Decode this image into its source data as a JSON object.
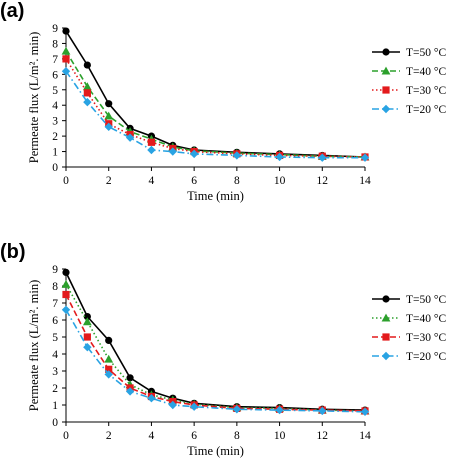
{
  "chart_data": [
    {
      "panel_label": "(a)",
      "type": "line",
      "xlabel": "Time (min)",
      "ylabel": "Permeate flux (L/m². min)",
      "xlim": [
        0,
        14
      ],
      "ylim": [
        0,
        9
      ],
      "xticks": [
        0,
        2,
        4,
        6,
        8,
        10,
        12,
        14
      ],
      "yticks": [
        0,
        1,
        2,
        3,
        4,
        5,
        6,
        7,
        8,
        9
      ],
      "grid": false,
      "legend_position": "right",
      "series": [
        {
          "name": "T=50 °C",
          "color": "#000000",
          "line_style": "solid",
          "marker": "circle",
          "x": [
            0,
            1,
            2,
            3,
            4,
            5,
            6,
            8,
            10,
            12,
            14
          ],
          "y": [
            8.8,
            6.6,
            4.1,
            2.5,
            2.0,
            1.4,
            1.1,
            0.95,
            0.85,
            0.75,
            0.65
          ]
        },
        {
          "name": "T=40 °C",
          "color": "#2ca02c",
          "line_style": "dashed",
          "marker": "triangle",
          "x": [
            0,
            1,
            2,
            3,
            4,
            5,
            6,
            8,
            10,
            12,
            14
          ],
          "y": [
            7.5,
            5.2,
            3.3,
            2.3,
            1.8,
            1.3,
            1.05,
            0.9,
            0.8,
            0.7,
            0.65
          ]
        },
        {
          "name": "T=30 °C",
          "color": "#e31a1c",
          "line_style": "dotted",
          "marker": "square",
          "x": [
            0,
            1,
            2,
            3,
            4,
            5,
            6,
            8,
            10,
            12,
            14
          ],
          "y": [
            7.0,
            4.8,
            2.8,
            2.1,
            1.6,
            1.2,
            1.0,
            0.85,
            0.75,
            0.7,
            0.65
          ]
        },
        {
          "name": "T=20 °C",
          "color": "#29a3e3",
          "line_style": "dashdot",
          "marker": "diamond",
          "x": [
            0,
            1,
            2,
            3,
            4,
            5,
            6,
            8,
            10,
            12,
            14
          ],
          "y": [
            6.2,
            4.2,
            2.6,
            1.9,
            1.1,
            1.0,
            0.85,
            0.75,
            0.65,
            0.6,
            0.6
          ]
        }
      ]
    },
    {
      "panel_label": "(b)",
      "type": "line",
      "xlabel": "Time (min)",
      "ylabel": "Permeate flux (L/m². min)",
      "xlim": [
        0,
        14
      ],
      "ylim": [
        0,
        9
      ],
      "xticks": [
        0,
        2,
        4,
        6,
        8,
        10,
        12,
        14
      ],
      "yticks": [
        0,
        1,
        2,
        3,
        4,
        5,
        6,
        7,
        8,
        9
      ],
      "grid": false,
      "legend_position": "right",
      "series": [
        {
          "name": "T=50 °C",
          "color": "#000000",
          "line_style": "solid",
          "marker": "circle",
          "x": [
            0,
            1,
            2,
            3,
            4,
            5,
            6,
            8,
            10,
            12,
            14
          ],
          "y": [
            8.8,
            6.2,
            4.8,
            2.6,
            1.8,
            1.4,
            1.1,
            0.9,
            0.85,
            0.75,
            0.7
          ]
        },
        {
          "name": "T=40 °C",
          "color": "#2ca02c",
          "line_style": "dotted",
          "marker": "triangle",
          "x": [
            0,
            1,
            2,
            3,
            4,
            5,
            6,
            8,
            10,
            12,
            14
          ],
          "y": [
            8.1,
            5.9,
            3.7,
            2.2,
            1.6,
            1.3,
            1.05,
            0.85,
            0.8,
            0.7,
            0.65
          ]
        },
        {
          "name": "T=30 °C",
          "color": "#e31a1c",
          "line_style": "dashed",
          "marker": "square",
          "x": [
            0,
            1,
            2,
            3,
            4,
            5,
            6,
            8,
            10,
            12,
            14
          ],
          "y": [
            7.5,
            5.0,
            3.1,
            2.0,
            1.5,
            1.2,
            1.0,
            0.8,
            0.75,
            0.7,
            0.65
          ]
        },
        {
          "name": "T=20 °C",
          "color": "#29a3e3",
          "line_style": "dashdot",
          "marker": "diamond",
          "x": [
            0,
            1,
            2,
            3,
            4,
            5,
            6,
            8,
            10,
            12,
            14
          ],
          "y": [
            6.6,
            4.4,
            2.8,
            1.8,
            1.4,
            1.0,
            0.9,
            0.75,
            0.7,
            0.65,
            0.6
          ]
        }
      ]
    }
  ]
}
